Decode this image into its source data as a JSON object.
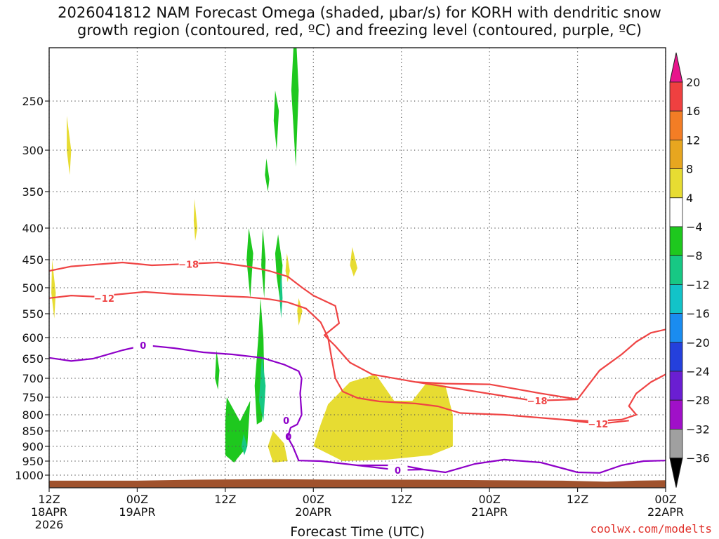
{
  "title": {
    "line1": "2026041812 NAM Forecast Omega (shaded, μbar/s) for KORH with dendritic snow",
    "line2": "growth region (contoured, red, ºC) and freezing level (contoured, purple, ºC)"
  },
  "credit": "coolwx.com/modelts",
  "colors": {
    "ground": "#a0522d",
    "temp_contour": "#ef4444",
    "freezing_contour": "#8e00c8",
    "grid": "#555555"
  },
  "chart_data": {
    "type": "heatmap",
    "xlabel": "Forecast Time (UTC)",
    "ylabel": "",
    "xlim_hours": [
      0,
      84
    ],
    "y_axis_reversed": true,
    "y_ticks_hpa": [
      250,
      300,
      350,
      400,
      450,
      500,
      550,
      600,
      650,
      700,
      750,
      800,
      850,
      900,
      950,
      1000
    ],
    "x_ticks": [
      {
        "hour": 0,
        "label": "12Z",
        "sub": "18APR",
        "sub2": "2026"
      },
      {
        "hour": 12,
        "label": "00Z",
        "sub": "19APR"
      },
      {
        "hour": 24,
        "label": "12Z"
      },
      {
        "hour": 36,
        "label": "00Z",
        "sub": "20APR"
      },
      {
        "hour": 48,
        "label": "12Z"
      },
      {
        "hour": 60,
        "label": "00Z",
        "sub": "21APR"
      },
      {
        "hour": 72,
        "label": "12Z"
      },
      {
        "hour": 84,
        "label": "00Z",
        "sub": "22APR"
      }
    ],
    "colorbar": [
      {
        "label": "20",
        "color": "#ef4040"
      },
      {
        "label": "16",
        "color": "#f37d25"
      },
      {
        "label": "12",
        "color": "#e7a61f"
      },
      {
        "label": "8",
        "color": "#e7dc32"
      },
      {
        "label": "4",
        "color": "#ffffff"
      },
      {
        "label": "−4",
        "color": "#1ec81e"
      },
      {
        "label": "−8",
        "color": "#17c884"
      },
      {
        "label": "−12",
        "color": "#12c3c8"
      },
      {
        "label": "−16",
        "color": "#1a8cf0"
      },
      {
        "label": "−20",
        "color": "#2440dc"
      },
      {
        "label": "−24",
        "color": "#6a1ed2"
      },
      {
        "label": "−28",
        "color": "#a010c8"
      },
      {
        "label": "−32",
        "color": "#a0a0a0"
      },
      {
        "label": "−36",
        "color": "#000000"
      }
    ],
    "colorbar_top_color": "#e8148c",
    "omega_regions": [
      {
        "value": 6,
        "points": [
          [
            2.4,
            265
          ],
          [
            3.0,
            300
          ],
          [
            2.8,
            330
          ],
          [
            2.4,
            300
          ]
        ]
      },
      {
        "value": 6,
        "points": [
          [
            0.4,
            450
          ],
          [
            0.9,
            510
          ],
          [
            0.7,
            560
          ],
          [
            0.3,
            510
          ]
        ]
      },
      {
        "value": 6,
        "points": [
          [
            19.8,
            360
          ],
          [
            20.2,
            400
          ],
          [
            19.9,
            420
          ],
          [
            19.7,
            390
          ]
        ]
      },
      {
        "value": 6,
        "points": [
          [
            41.3,
            430
          ],
          [
            42.0,
            465
          ],
          [
            41.5,
            480
          ],
          [
            41.0,
            460
          ]
        ]
      },
      {
        "value": 6,
        "points": [
          [
            38.0,
            770
          ],
          [
            41.0,
            710
          ],
          [
            44.5,
            690
          ],
          [
            47.0,
            760
          ],
          [
            49.5,
            760
          ],
          [
            51.5,
            710
          ],
          [
            54.0,
            720
          ],
          [
            55.0,
            800
          ],
          [
            55.0,
            900
          ],
          [
            52.0,
            930
          ],
          [
            46.0,
            945
          ],
          [
            40.0,
            950
          ],
          [
            36.0,
            900
          ],
          [
            37.0,
            830
          ]
        ]
      },
      {
        "value": 6,
        "points": [
          [
            30.5,
            850
          ],
          [
            32.0,
            890
          ],
          [
            32.5,
            950
          ],
          [
            30.5,
            955
          ],
          [
            29.8,
            900
          ]
        ]
      },
      {
        "value": 6,
        "points": [
          [
            34.0,
            520
          ],
          [
            34.5,
            545
          ],
          [
            34.0,
            575
          ],
          [
            33.8,
            545
          ]
        ]
      },
      {
        "value": 6,
        "points": [
          [
            32.4,
            440
          ],
          [
            32.8,
            470
          ],
          [
            32.5,
            490
          ],
          [
            32.2,
            470
          ]
        ]
      },
      {
        "value": -6,
        "points": [
          [
            33.5,
            170
          ],
          [
            34.0,
            240
          ],
          [
            33.6,
            320
          ],
          [
            33.0,
            240
          ]
        ]
      },
      {
        "value": -6,
        "points": [
          [
            30.8,
            240
          ],
          [
            31.3,
            260
          ],
          [
            31.0,
            300
          ],
          [
            30.6,
            270
          ]
        ]
      },
      {
        "value": -6,
        "points": [
          [
            29.6,
            310
          ],
          [
            30.0,
            335
          ],
          [
            29.8,
            350
          ],
          [
            29.4,
            330
          ]
        ]
      },
      {
        "value": -6,
        "points": [
          [
            27.2,
            400
          ],
          [
            27.8,
            440
          ],
          [
            27.4,
            520
          ],
          [
            26.9,
            450
          ]
        ]
      },
      {
        "value": -6,
        "points": [
          [
            31.2,
            410
          ],
          [
            31.8,
            460
          ],
          [
            31.5,
            530
          ],
          [
            31.0,
            480
          ],
          [
            30.8,
            440
          ]
        ]
      },
      {
        "value": -6,
        "points": [
          [
            29.1,
            400
          ],
          [
            29.5,
            450
          ],
          [
            29.3,
            520
          ],
          [
            28.9,
            460
          ]
        ]
      },
      {
        "value": -6,
        "points": [
          [
            28.8,
            520
          ],
          [
            29.2,
            600
          ],
          [
            29.3,
            700
          ],
          [
            29.0,
            820
          ],
          [
            28.3,
            830
          ],
          [
            28.0,
            720
          ],
          [
            28.5,
            600
          ]
        ]
      },
      {
        "value": -6,
        "points": [
          [
            22.8,
            630
          ],
          [
            23.2,
            680
          ],
          [
            23.0,
            730
          ],
          [
            22.6,
            700
          ]
        ]
      },
      {
        "value": -6,
        "points": [
          [
            24.2,
            750
          ],
          [
            26.0,
            820
          ],
          [
            27.4,
            760
          ],
          [
            27.0,
            900
          ],
          [
            25.2,
            955
          ],
          [
            24.0,
            930
          ],
          [
            24.0,
            820
          ]
        ]
      },
      {
        "value": -10,
        "points": [
          [
            29.0,
            640
          ],
          [
            29.5,
            720
          ],
          [
            29.2,
            820
          ],
          [
            28.6,
            760
          ]
        ]
      },
      {
        "value": -10,
        "points": [
          [
            31.6,
            460
          ],
          [
            31.8,
            520
          ],
          [
            31.6,
            560
          ],
          [
            31.4,
            520
          ]
        ]
      },
      {
        "value": -10,
        "points": [
          [
            26.5,
            860
          ],
          [
            27.0,
            900
          ],
          [
            26.6,
            930
          ],
          [
            26.2,
            900
          ]
        ]
      }
    ],
    "temp_contours": [
      {
        "label": "−18",
        "label_at": [
          19.0,
          458
        ],
        "points": [
          [
            0,
            470
          ],
          [
            3,
            462
          ],
          [
            7,
            458
          ],
          [
            10,
            455
          ],
          [
            14,
            460
          ],
          [
            18,
            458
          ],
          [
            23,
            455
          ],
          [
            27,
            462
          ],
          [
            30,
            470
          ],
          [
            32.5,
            480
          ],
          [
            34.5,
            500
          ],
          [
            36,
            515
          ],
          [
            39,
            535
          ],
          [
            39.5,
            570
          ],
          [
            37.5,
            595
          ],
          [
            39.0,
            620
          ],
          [
            40,
            640
          ],
          [
            41,
            660
          ],
          [
            44,
            690
          ],
          [
            50,
            710
          ],
          [
            54,
            714
          ],
          [
            60,
            716
          ],
          [
            67,
            740
          ],
          [
            72,
            756
          ],
          [
            73,
            730
          ],
          [
            75,
            680
          ],
          [
            78,
            640
          ],
          [
            80,
            610
          ],
          [
            82,
            590
          ],
          [
            84,
            583
          ]
        ]
      },
      {
        "label": "−18",
        "label_at": [
          66.5,
          760
        ],
        "points": [
          [
            50,
            710
          ],
          [
            66,
            760
          ],
          [
            72,
            756
          ]
        ]
      },
      {
        "label": "−12",
        "label_at": [
          7.5,
          520
        ],
        "points": [
          [
            0,
            520
          ],
          [
            3,
            515
          ],
          [
            6,
            517
          ],
          [
            10,
            512
          ],
          [
            13,
            508
          ],
          [
            17,
            512
          ],
          [
            22,
            515
          ],
          [
            27,
            518
          ],
          [
            30,
            522
          ],
          [
            32.5,
            528
          ],
          [
            35,
            540
          ],
          [
            37,
            568
          ],
          [
            38,
            600
          ],
          [
            38.5,
            650
          ],
          [
            39,
            700
          ],
          [
            40,
            735
          ],
          [
            42,
            752
          ],
          [
            45,
            762
          ],
          [
            50,
            768
          ],
          [
            53,
            776
          ],
          [
            56,
            795
          ],
          [
            62,
            800
          ],
          [
            70,
            815
          ],
          [
            74,
            820
          ],
          [
            78,
            815
          ],
          [
            80,
            800
          ],
          [
            79,
            775
          ],
          [
            80,
            740
          ],
          [
            82,
            710
          ],
          [
            84,
            690
          ]
        ]
      },
      {
        "label": "−12",
        "label_at": [
          74.8,
          828
        ],
        "points": [
          [
            70,
            815
          ],
          [
            75,
            828
          ],
          [
            79,
            818
          ]
        ]
      }
    ],
    "freezing_contours": [
      {
        "label": "0",
        "label_at": [
          12.8,
          618
        ],
        "points": [
          [
            0,
            648
          ],
          [
            3,
            656
          ],
          [
            6,
            650
          ],
          [
            10,
            630
          ],
          [
            13,
            618
          ],
          [
            17,
            625
          ],
          [
            21,
            635
          ],
          [
            25,
            640
          ],
          [
            29,
            648
          ],
          [
            32,
            665
          ],
          [
            34,
            682
          ],
          [
            34.4,
            700
          ],
          [
            34.2,
            740
          ],
          [
            34.4,
            800
          ],
          [
            33.8,
            830
          ],
          [
            32.9,
            840
          ],
          [
            32.5,
            870
          ],
          [
            33.2,
            900
          ],
          [
            34.0,
            948
          ],
          [
            37,
            950
          ],
          [
            42,
            965
          ],
          [
            48,
            965
          ],
          [
            51,
            980
          ],
          [
            54,
            990
          ],
          [
            58,
            960
          ],
          [
            62,
            945
          ],
          [
            67,
            955
          ],
          [
            72,
            990
          ],
          [
            75,
            992
          ],
          [
            78,
            965
          ],
          [
            81,
            950
          ],
          [
            84,
            948
          ]
        ]
      },
      {
        "label": "0",
        "label_at": [
          47.5,
          982
        ],
        "points": [
          [
            42,
            965
          ],
          [
            47.5,
            982
          ],
          [
            51,
            980
          ]
        ]
      }
    ],
    "freezing_extra_labels": [
      {
        "label": "0",
        "at": [
          32.3,
          820
        ]
      },
      {
        "label": "0",
        "at": [
          32.6,
          870
        ]
      }
    ]
  }
}
